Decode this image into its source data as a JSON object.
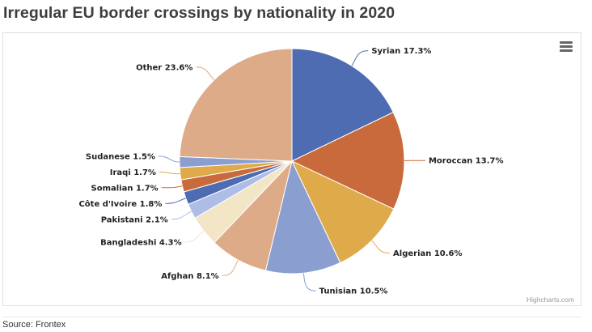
{
  "page": {
    "title": "Irregular EU border crossings by nationality in 2020",
    "source": "Source: Frontex",
    "credits": "Highcharts.com",
    "menu_icon": "hamburger-menu-icon"
  },
  "chart_data": {
    "type": "pie",
    "title": "Irregular EU border crossings by nationality in 2020",
    "value_suffix": "%",
    "start_angle": "top, clockwise",
    "slices": [
      {
        "name": "Syrian",
        "value": 17.3,
        "color": "#4e6cb2"
      },
      {
        "name": "Moroccan",
        "value": 13.7,
        "color": "#c96a3c"
      },
      {
        "name": "Algerian",
        "value": 10.6,
        "color": "#deaa4a"
      },
      {
        "name": "Tunisian",
        "value": 10.5,
        "color": "#8a9fd0"
      },
      {
        "name": "Afghan",
        "value": 8.1,
        "color": "#deab88"
      },
      {
        "name": "Bangladeshi",
        "value": 4.3,
        "color": "#f3e6c6"
      },
      {
        "name": "Pakistani",
        "value": 2.1,
        "color": "#aebde6"
      },
      {
        "name": "Côte d'Ivoire",
        "value": 1.8,
        "color": "#4e6cb2"
      },
      {
        "name": "Somalian",
        "value": 1.7,
        "color": "#c96a3c"
      },
      {
        "name": "Iraqi",
        "value": 1.7,
        "color": "#deaa4a"
      },
      {
        "name": "Sudanese",
        "value": 1.5,
        "color": "#8a9fd0"
      },
      {
        "name": "Other",
        "value": 23.6,
        "color": "#deab88"
      }
    ]
  }
}
